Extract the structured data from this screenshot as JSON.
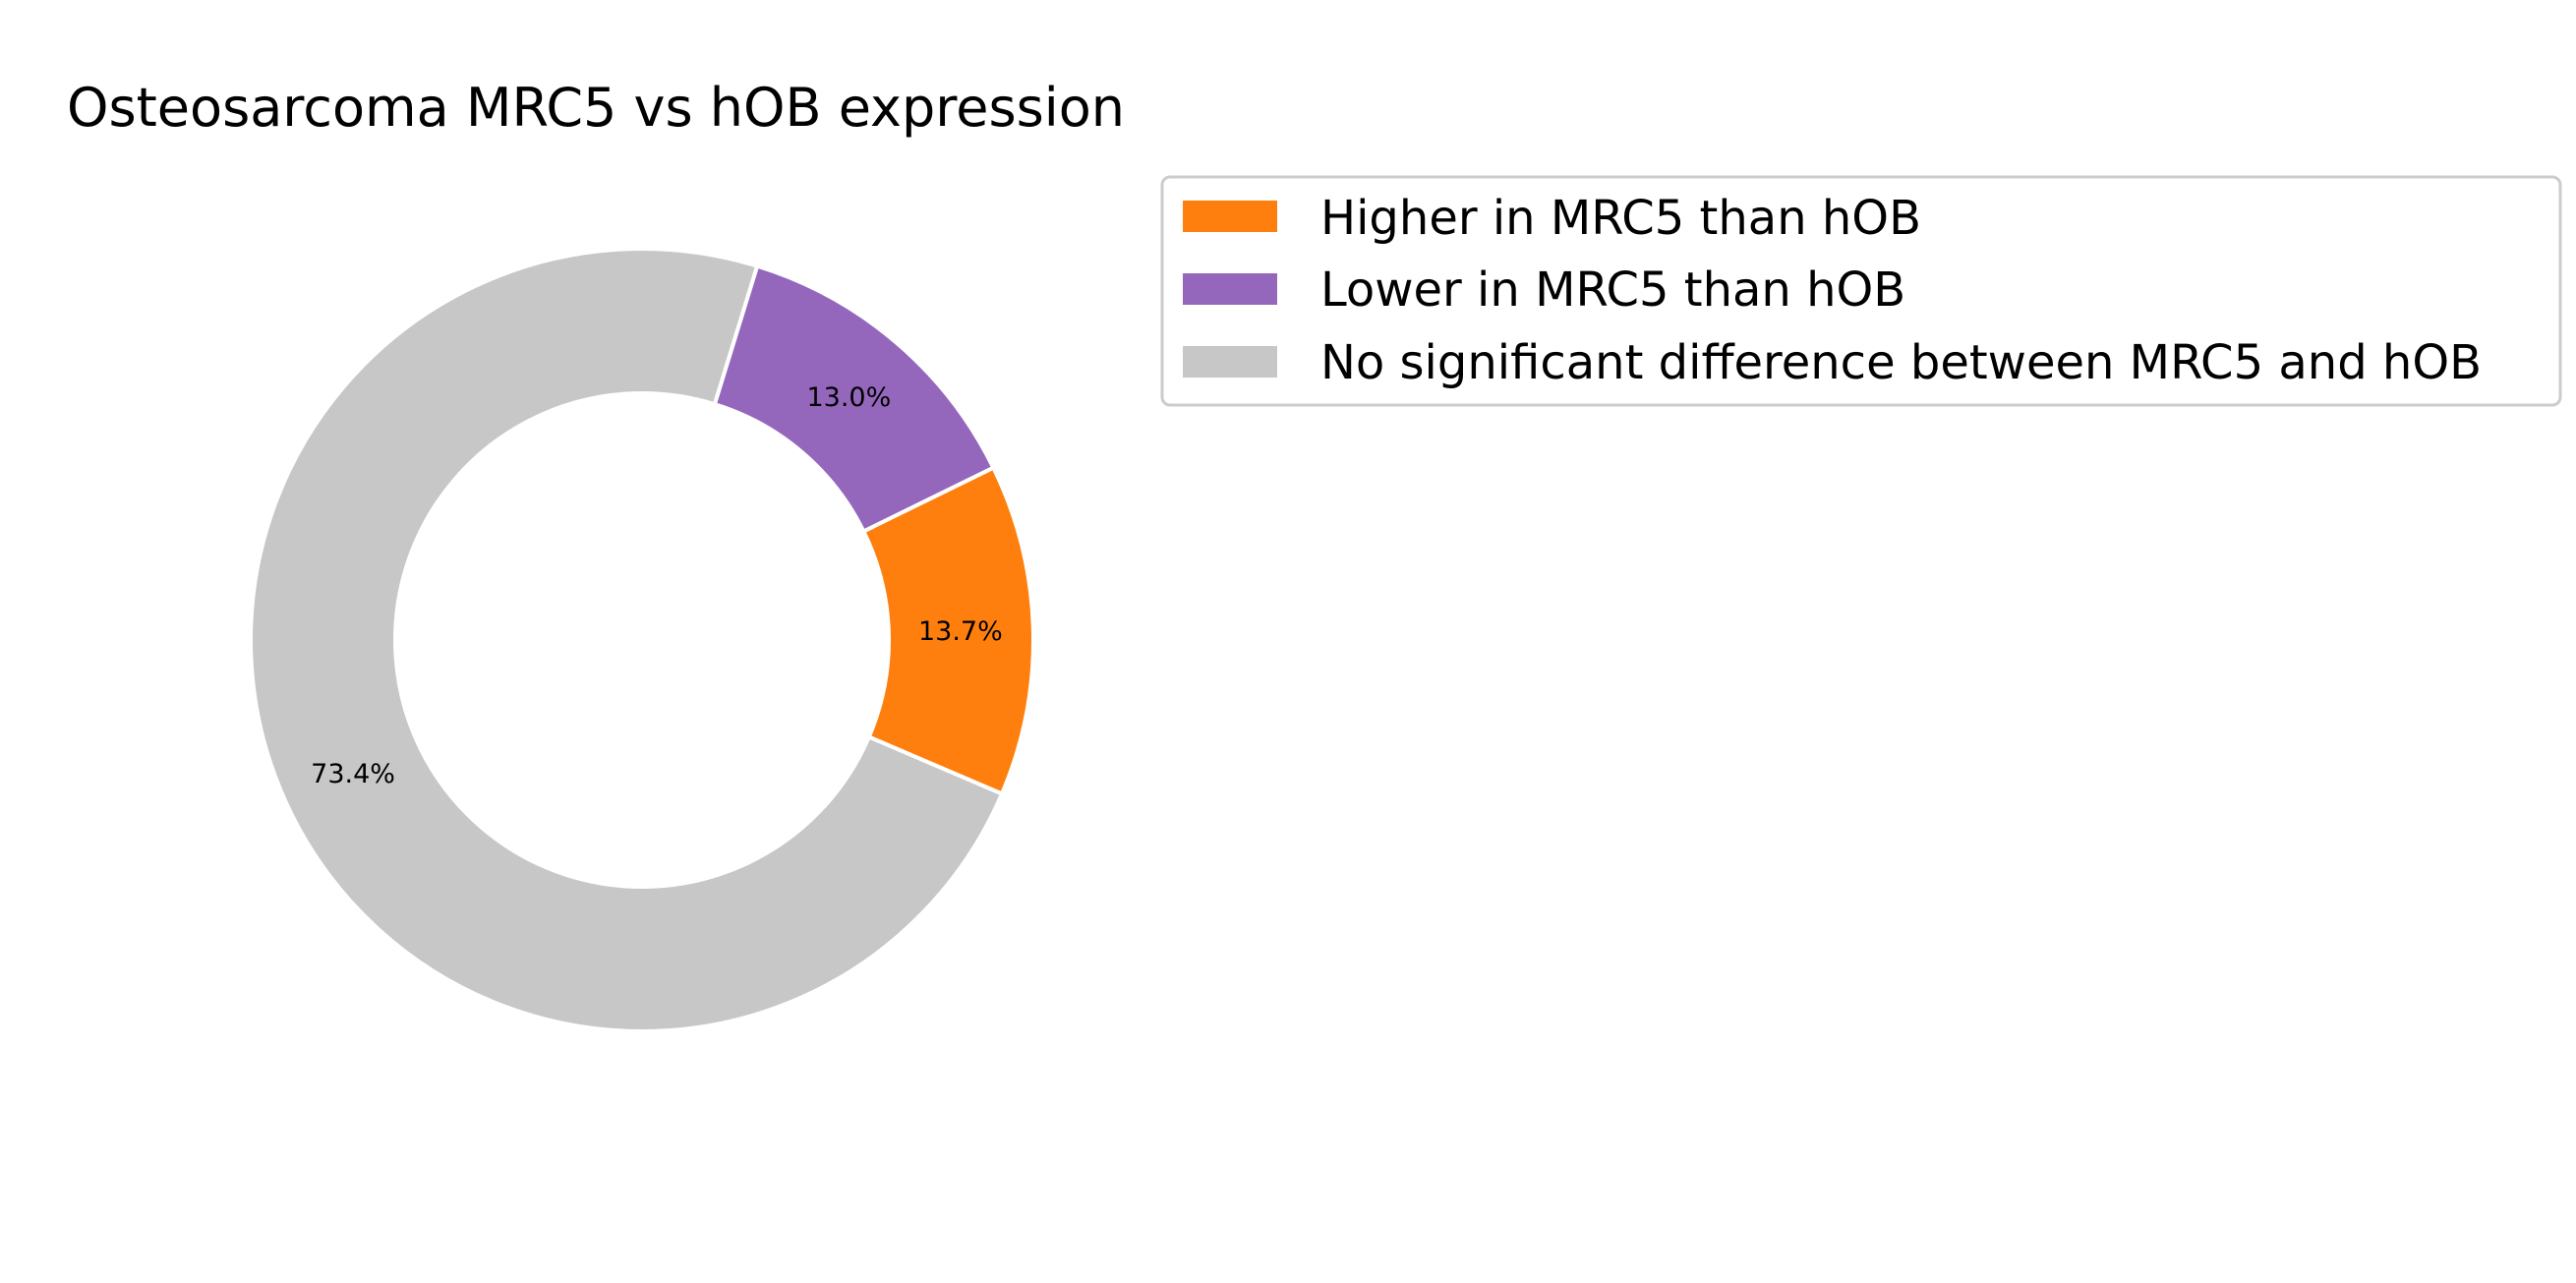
{
  "chart_data": {
    "type": "pie",
    "style": "donut",
    "title": "Osteosarcoma MRC5 vs hOB expression",
    "slices": [
      {
        "label": "Higher in MRC5 than hOB",
        "value": 13.7,
        "pct_label": "13.7%",
        "color": "#ff7f0e"
      },
      {
        "label": "Lower in MRC5 than hOB",
        "value": 13.0,
        "pct_label": "13.0%",
        "color": "#9467bd"
      },
      {
        "label": "No significant difference between MRC5 and hOB",
        "value": 73.4,
        "pct_label": "73.4%",
        "color": "#c7c7c7"
      }
    ],
    "legend_position": "upper right, outside plot"
  }
}
